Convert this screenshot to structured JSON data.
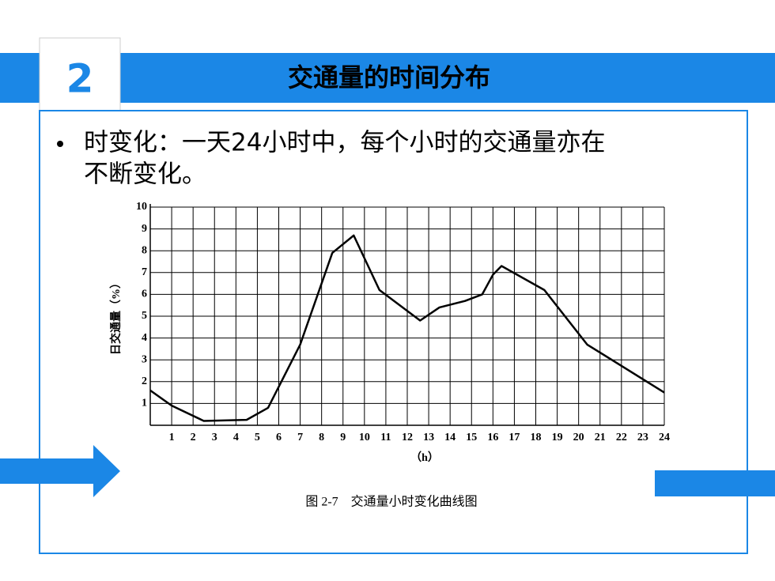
{
  "slide": {
    "number": "2",
    "title": "交通量的时间分布",
    "bullet_lines": [
      "时变化：一天24小时中，每个小时的交通量亦在",
      "不断变化。"
    ]
  },
  "chart_data": {
    "type": "line",
    "x": [
      0,
      1,
      2.5,
      4.5,
      5.5,
      7,
      8.5,
      9.5,
      10.7,
      12.6,
      13.5,
      14.7,
      15.5,
      16,
      16.4,
      18.4,
      20.4,
      24
    ],
    "series": [
      {
        "color": "#000000",
        "values": [
          1.6,
          0.9,
          0.2,
          0.25,
          0.8,
          3.7,
          7.9,
          8.7,
          6.2,
          4.8,
          5.4,
          5.7,
          6.0,
          6.9,
          7.3,
          6.2,
          3.7,
          1.5
        ]
      }
    ],
    "xlim": [
      0,
      24
    ],
    "ylim": [
      0,
      10
    ],
    "xticks": [
      1,
      2,
      3,
      4,
      5,
      6,
      7,
      8,
      9,
      10,
      11,
      12,
      13,
      14,
      15,
      16,
      17,
      18,
      19,
      20,
      21,
      22,
      23,
      24
    ],
    "yticks": [
      1,
      2,
      3,
      4,
      5,
      6,
      7,
      8,
      9,
      10
    ],
    "xlabel": "（h）",
    "ylabel": "日交通量（%）",
    "caption": "图 2-7　交通量小时变化曲线图",
    "grid": true
  }
}
